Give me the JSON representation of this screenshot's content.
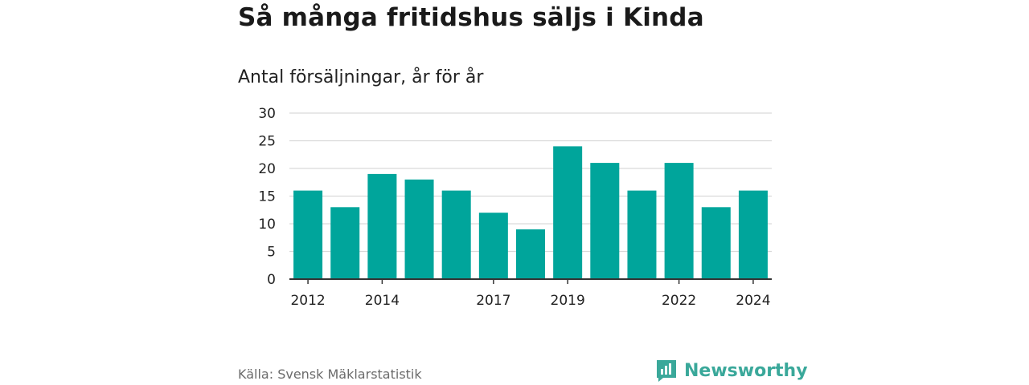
{
  "header": {
    "title": "Så många fritidshus säljs i Kinda",
    "subtitle": "Antal försäljningar, år för år"
  },
  "footer": {
    "source": "Källa: Svensk Mäklarstatistik",
    "brand": "Newsworthy"
  },
  "colors": {
    "bar": "#00a59b",
    "grid": "#d9d9d9",
    "axis": "#333333",
    "brand": "#3aa89a"
  },
  "chart_data": {
    "type": "bar",
    "title": "Så många fritidshus säljs i Kinda",
    "subtitle": "Antal försäljningar, år för år",
    "categories": [
      "2012",
      "2013",
      "2014",
      "2015",
      "2016",
      "2017",
      "2018",
      "2019",
      "2020",
      "2021",
      "2022",
      "2023",
      "2024"
    ],
    "values": [
      16,
      13,
      19,
      18,
      16,
      12,
      9,
      24,
      21,
      16,
      21,
      13,
      16
    ],
    "x_tick_labels": [
      "2012",
      "2014",
      "2017",
      "2019",
      "2022",
      "2024"
    ],
    "y_ticks": [
      0,
      5,
      10,
      15,
      20,
      25,
      30
    ],
    "ylim": [
      0,
      30
    ],
    "grid": true,
    "legend": "none"
  }
}
